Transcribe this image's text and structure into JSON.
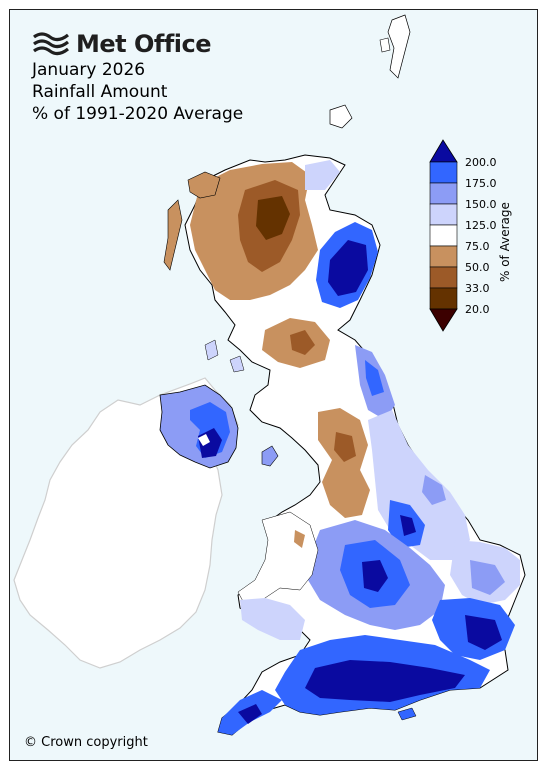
{
  "header": {
    "brand": "Met Office",
    "line1": "January 2026",
    "line2": "Rainfall Amount",
    "line3": "% of 1991-2020 Average"
  },
  "legend": {
    "title": "% of Average",
    "ticks": [
      "200.0",
      "175.0",
      "150.0",
      "125.0",
      "75.0",
      "50.0",
      "33.0",
      "20.0"
    ],
    "colors": {
      "over_200": "#0a0aa0",
      "175_200": "#3266ff",
      "150_175": "#8c9cf5",
      "125_150": "#cdd4fc",
      "75_125": "#ffffff",
      "50_75": "#c8915f",
      "33_50": "#9c5a28",
      "20_33": "#643200",
      "under_20": "#3c0000"
    }
  },
  "footer": {
    "copyright": "© Crown copyright"
  }
}
